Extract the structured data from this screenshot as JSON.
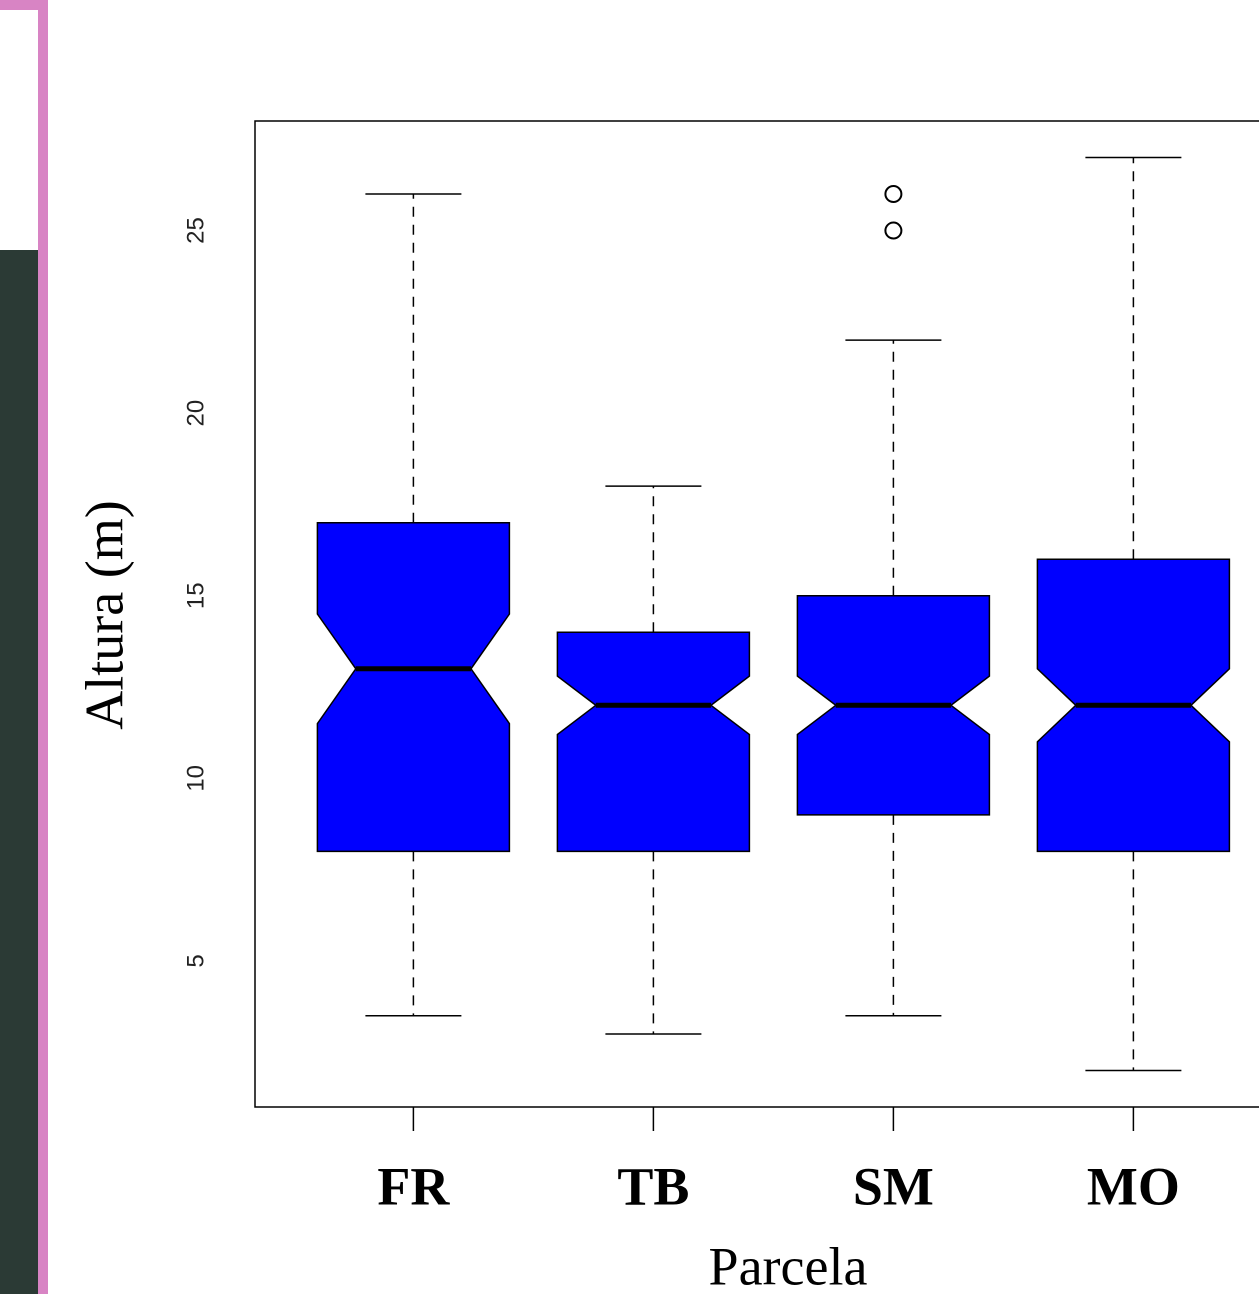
{
  "chart_data": {
    "type": "boxplot",
    "x_label": "Parcela",
    "y_label": "Altura (m)",
    "categories": [
      "FR",
      "TB",
      "SM",
      "MO"
    ],
    "color": "#0000ff",
    "notch": true,
    "boxes": [
      {
        "whisker_low": 3.5,
        "q1": 8,
        "notch_low": 11.5,
        "median": 13,
        "notch_high": 14.5,
        "q3": 17,
        "whisker_high": 26,
        "outliers": []
      },
      {
        "whisker_low": 3,
        "q1": 8,
        "notch_low": 11.2,
        "median": 12,
        "notch_high": 12.8,
        "q3": 14,
        "whisker_high": 18,
        "outliers": []
      },
      {
        "whisker_low": 3.5,
        "q1": 9,
        "notch_low": 11.2,
        "median": 12,
        "notch_high": 12.8,
        "q3": 15,
        "whisker_high": 22,
        "outliers": [
          25,
          26
        ]
      },
      {
        "whisker_low": 2,
        "q1": 8,
        "notch_low": 11,
        "median": 12,
        "notch_high": 13,
        "q3": 16,
        "whisker_high": 27,
        "outliers": []
      }
    ],
    "ylim": [
      1,
      28
    ],
    "yticks": [
      5,
      10,
      15,
      20,
      25
    ]
  }
}
